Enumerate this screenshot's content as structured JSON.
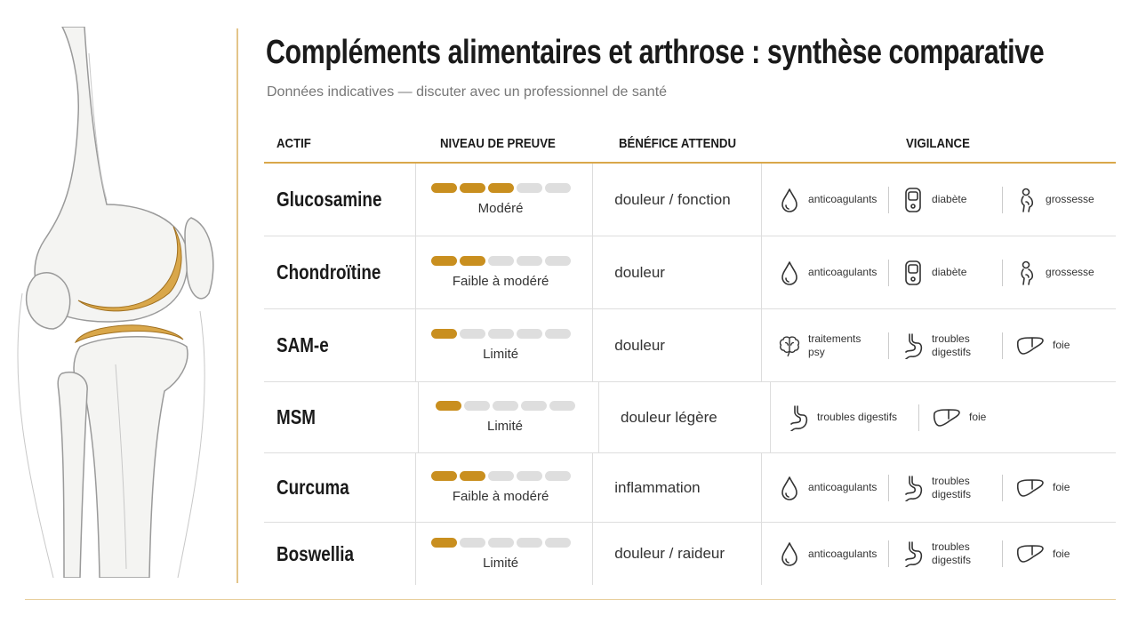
{
  "header": {
    "title": "Compléments alimentaires et arthrose : synthèse comparative",
    "subtitle": "Données indicatives — discuter avec un professionnel de santé"
  },
  "table": {
    "columns": [
      "ACTIF",
      "NIVEAU DE PREUVE",
      "BÉNÉFICE ATTENDU",
      "VIGILANCE"
    ],
    "evidence_max": 5,
    "rows": [
      {
        "actif": "Glucosamine",
        "evidence": 3,
        "evidence_label": "Modéré",
        "benefit": "douleur / fonction",
        "vigilance": [
          "anticoagulants",
          "diabète",
          "grossesse"
        ]
      },
      {
        "actif": "Chondroïtine",
        "evidence": 2,
        "evidence_label": "Faible à modéré",
        "benefit": "douleur",
        "vigilance": [
          "anticoagulants",
          "diabète",
          "grossesse"
        ]
      },
      {
        "actif": "SAM-e",
        "evidence": 1,
        "evidence_label": "Limité",
        "benefit": "douleur",
        "vigilance": [
          "traitements psy",
          "troubles digestifs",
          "foie"
        ]
      },
      {
        "actif": "MSM",
        "evidence": 1,
        "evidence_label": "Limité",
        "benefit": "douleur légère",
        "vigilance": [
          "troubles digestifs",
          "foie"
        ]
      },
      {
        "actif": "Curcuma",
        "evidence": 2,
        "evidence_label": "Faible à modéré",
        "benefit": "inflammation",
        "vigilance": [
          "anticoagulants",
          "troubles digestifs",
          "foie"
        ]
      },
      {
        "actif": "Boswellia",
        "evidence": 1,
        "evidence_label": "Limité",
        "benefit": "douleur / raideur",
        "vigilance": [
          "anticoagulants",
          "troubles digestifs",
          "foie"
        ]
      }
    ]
  }
}
